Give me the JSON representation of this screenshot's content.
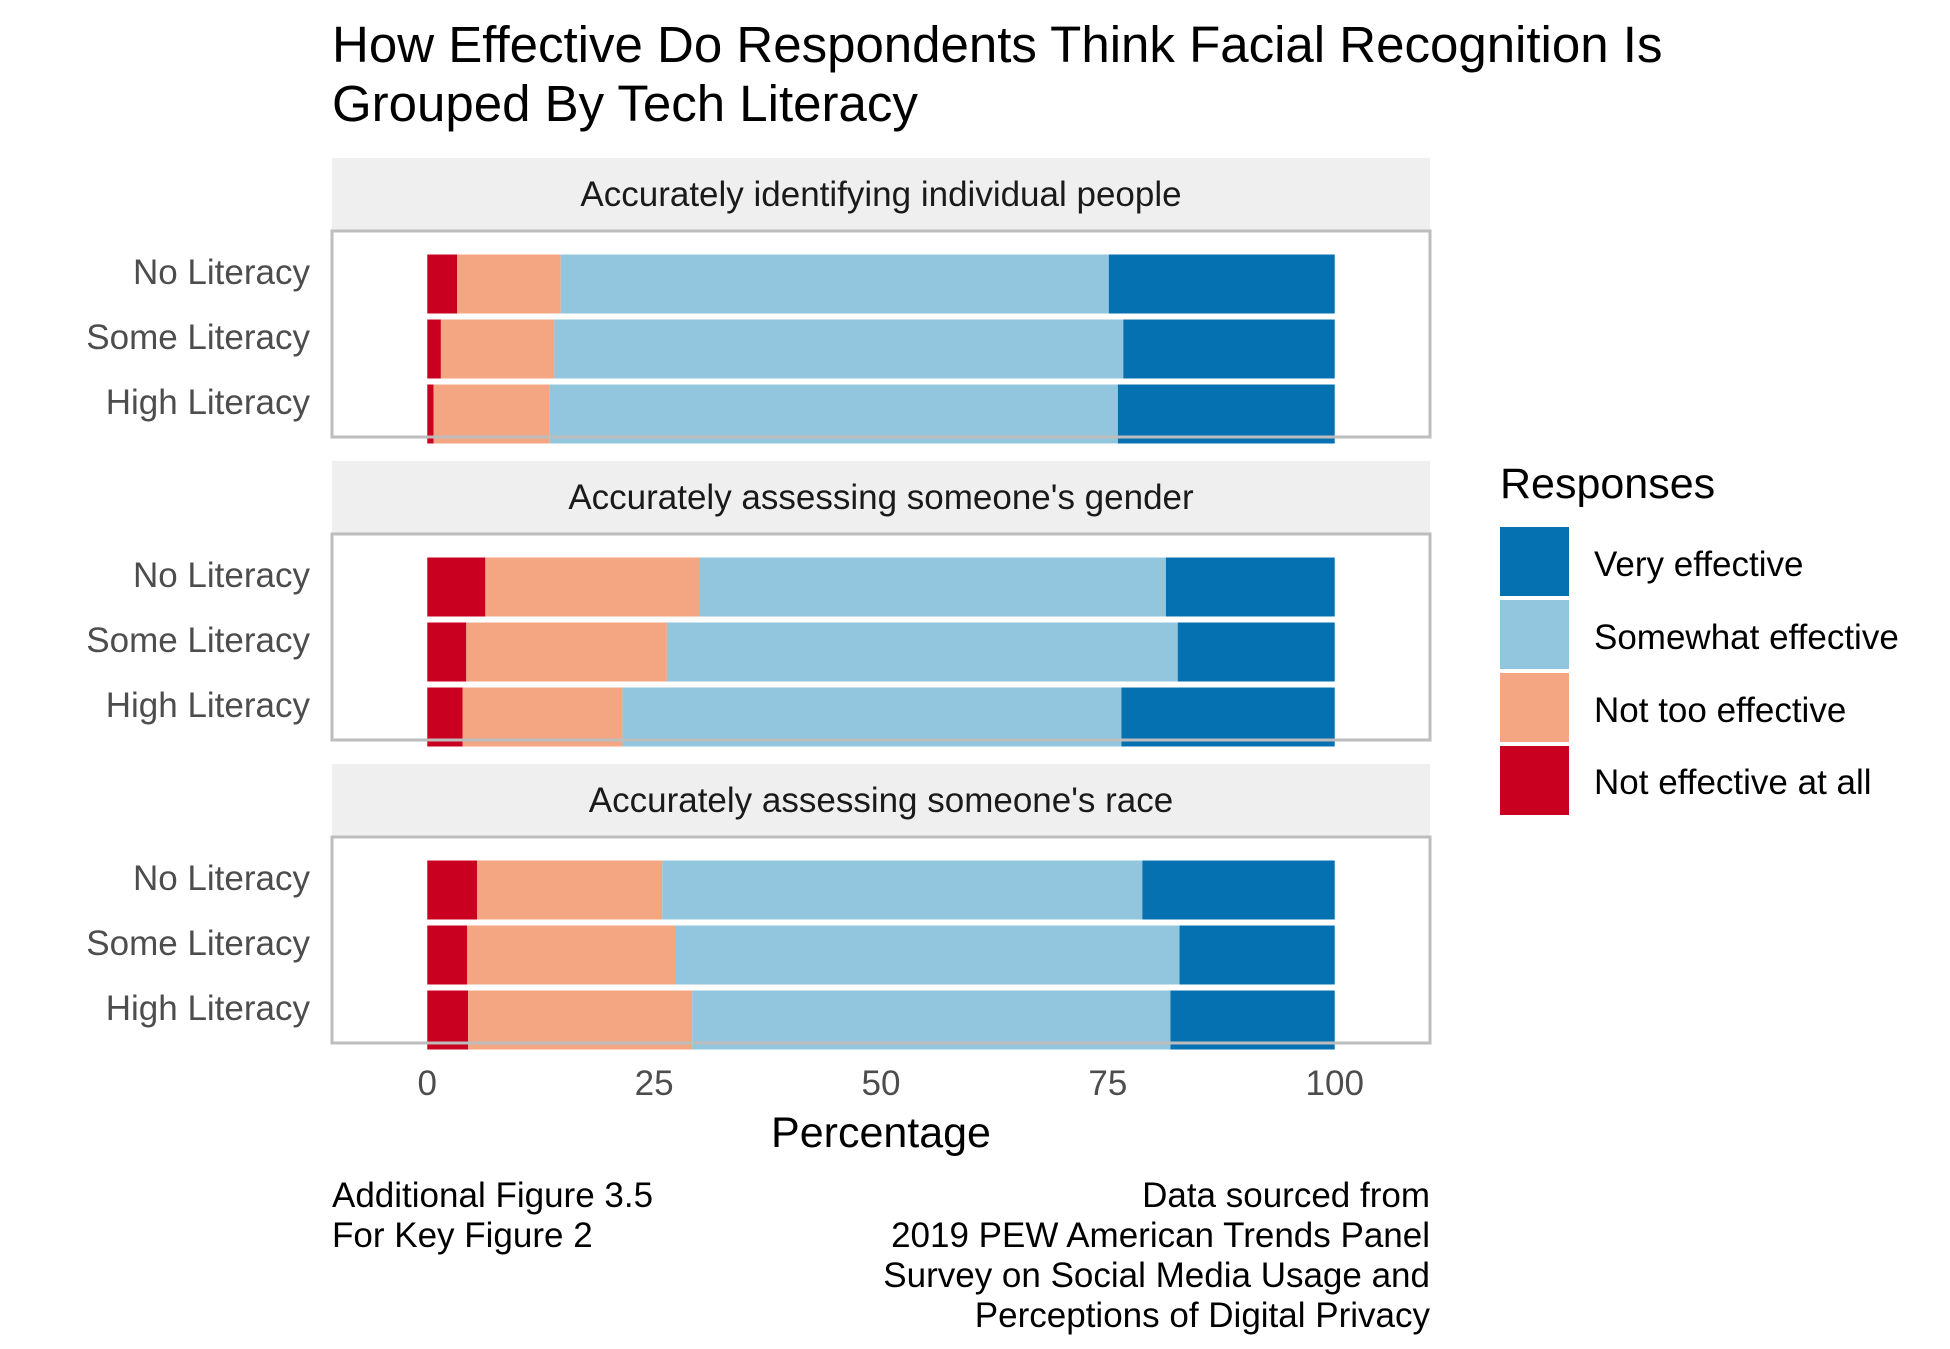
{
  "chart_data": {
    "type": "bar",
    "orientation": "horizontal",
    "stacked": true,
    "title_lines": [
      "How Effective Do Respondents Think Facial Recognition Is",
      "Grouped By Tech Literacy"
    ],
    "xlabel": "Percentage",
    "xlim": [
      -10.5,
      110.5
    ],
    "xticks": [
      0,
      25,
      50,
      75,
      100
    ],
    "legend_title": "Responses",
    "legend_placement": "right",
    "series": [
      {
        "name": "Very effective",
        "color": "#0571b0"
      },
      {
        "name": "Somewhat effective",
        "color": "#92c5de"
      },
      {
        "name": "Not too effective",
        "color": "#f4a582"
      },
      {
        "name": "Not effective at all",
        "color": "#ca0020"
      }
    ],
    "stack_order": [
      "Not effective at all",
      "Not too effective",
      "Somewhat effective",
      "Very effective"
    ],
    "panels": [
      {
        "title": "Accurately identifying individual people",
        "rows": [
          {
            "label": "No Literacy",
            "values": {
              "Not effective at all": 3.3,
              "Not too effective": 11.4,
              "Somewhat effective": 60.4,
              "Very effective": 24.9
            }
          },
          {
            "label": "Some Literacy",
            "values": {
              "Not effective at all": 1.5,
              "Not too effective": 12.5,
              "Somewhat effective": 62.7,
              "Very effective": 23.3
            }
          },
          {
            "label": "High Literacy",
            "values": {
              "Not effective at all": 0.7,
              "Not too effective": 12.8,
              "Somewhat effective": 62.6,
              "Very effective": 23.9
            }
          }
        ]
      },
      {
        "title": "Accurately assessing someone's gender",
        "rows": [
          {
            "label": "No Literacy",
            "values": {
              "Not effective at all": 6.4,
              "Not too effective": 23.6,
              "Somewhat effective": 51.4,
              "Very effective": 18.6
            }
          },
          {
            "label": "Some Literacy",
            "values": {
              "Not effective at all": 4.3,
              "Not too effective": 22.1,
              "Somewhat effective": 56.3,
              "Very effective": 17.3
            }
          },
          {
            "label": "High Literacy",
            "values": {
              "Not effective at all": 3.9,
              "Not too effective": 17.6,
              "Somewhat effective": 55.0,
              "Very effective": 23.5
            }
          }
        ]
      },
      {
        "title": "Accurately assessing someone's race",
        "rows": [
          {
            "label": "No Literacy",
            "values": {
              "Not effective at all": 5.5,
              "Not too effective": 20.4,
              "Somewhat effective": 52.9,
              "Very effective": 21.2
            }
          },
          {
            "label": "Some Literacy",
            "values": {
              "Not effective at all": 4.4,
              "Not too effective": 22.9,
              "Somewhat effective": 55.6,
              "Very effective": 17.1
            }
          },
          {
            "label": "High Literacy",
            "values": {
              "Not effective at all": 4.5,
              "Not too effective": 24.7,
              "Somewhat effective": 52.7,
              "Very effective": 18.1
            }
          }
        ]
      }
    ]
  },
  "caption_left": [
    "Additional Figure 3.5",
    "For Key Figure 2"
  ],
  "caption_right": [
    "Data sourced from",
    "2019 PEW American Trends Panel",
    "Survey on Social Media Usage and",
    "Perceptions of Digital Privacy"
  ]
}
